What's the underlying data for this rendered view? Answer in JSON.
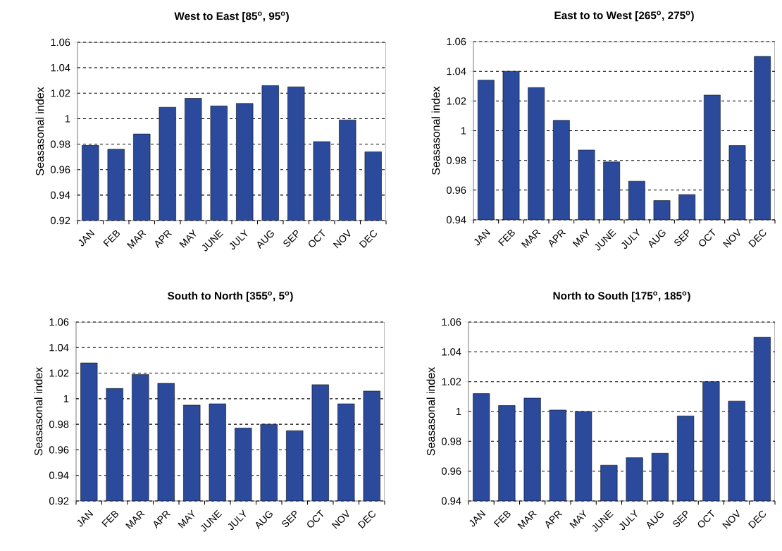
{
  "chart_data": [
    {
      "type": "bar",
      "title": "West to East [85$^{o}$, 95$^{o}$)",
      "ylabel": "Seasasonal index",
      "categories": [
        "JAN",
        "FEB",
        "MAR",
        "APR",
        "MAY",
        "JUNE",
        "JULY",
        "AUG",
        "SEP",
        "OCT",
        "NOV",
        "DEC"
      ],
      "values": [
        0.979,
        0.976,
        0.988,
        1.009,
        1.016,
        1.01,
        1.012,
        1.026,
        1.025,
        0.982,
        0.999,
        0.974
      ],
      "color": "#2b4a9b",
      "ylim": [
        0.92,
        1.06
      ],
      "yticks": [
        0.92,
        0.94,
        0.96,
        0.98,
        1,
        1.02,
        1.04,
        1.06
      ],
      "grid": "y"
    },
    {
      "type": "bar",
      "title": "East to to West [265$^{o}$, 275$^{o}$)",
      "ylabel": "Seasasonal index",
      "categories": [
        "JAN",
        "FEB",
        "MAR",
        "APR",
        "MAY",
        "JUNE",
        "JULY",
        "AUG",
        "SEP",
        "OCT",
        "NOV",
        "DEC"
      ],
      "values": [
        1.034,
        1.04,
        1.029,
        1.007,
        0.987,
        0.979,
        0.966,
        0.953,
        0.957,
        1.024,
        0.99,
        1.05
      ],
      "color": "#2b4a9b",
      "ylim": [
        0.94,
        1.06
      ],
      "yticks": [
        0.94,
        0.96,
        0.98,
        1,
        1.02,
        1.04,
        1.06
      ],
      "grid": "y"
    },
    {
      "type": "bar",
      "title": "South  to North [355$^{o}$, 5$^{o}$)",
      "ylabel": "Seasasonal index",
      "categories": [
        "JAN",
        "FEB",
        "MAR",
        "APR",
        "MAY",
        "JUNE",
        "JULY",
        "AUG",
        "SEP",
        "OCT",
        "NOV",
        "DEC"
      ],
      "values": [
        1.028,
        1.008,
        1.019,
        1.012,
        0.995,
        0.996,
        0.977,
        0.98,
        0.975,
        1.011,
        0.996,
        1.006
      ],
      "color": "#2b4a9b",
      "ylim": [
        0.92,
        1.06
      ],
      "yticks": [
        0.92,
        0.94,
        0.96,
        0.98,
        1,
        1.02,
        1.04,
        1.06
      ],
      "grid": "y"
    },
    {
      "type": "bar",
      "title": "North to South [175$^{o}$, 185$^{o}$)",
      "ylabel": "Seasasonal index",
      "categories": [
        "JAN",
        "FEB",
        "MAR",
        "APR",
        "MAY",
        "JUNE",
        "JULY",
        "AUG",
        "SEP",
        "OCT",
        "NOV",
        "DEC"
      ],
      "values": [
        1.012,
        1.004,
        1.009,
        1.001,
        1.0,
        0.964,
        0.969,
        0.972,
        0.997,
        1.02,
        1.007,
        1.05
      ],
      "color": "#2b4a9b",
      "ylim": [
        0.94,
        1.06
      ],
      "yticks": [
        0.94,
        0.96,
        0.98,
        1,
        1.02,
        1.04,
        1.06
      ],
      "grid": "y"
    }
  ]
}
